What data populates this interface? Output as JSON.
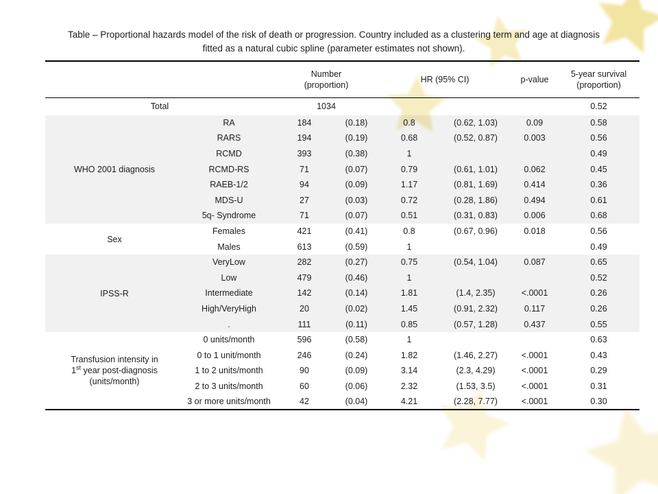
{
  "caption": {
    "line1": "Table – Proportional hazards model of the risk of death or progression. Country included as a clustering term and age at diagnosis",
    "line2": "fitted as a natural cubic spline (parameter estimates not shown)."
  },
  "colors": {
    "text": "#1c1c1c",
    "rule": "#000000",
    "shaded_row": "rgba(0,0,0,0.055)",
    "star_gold": "#f0df90",
    "star_pale": "#f5e9b4",
    "star_faint": "#f9f1d0"
  },
  "table": {
    "header": {
      "number_line1": "Number",
      "number_line2": "(proportion)",
      "hr": "HR (95% CI)",
      "pvalue": "p-value",
      "survival_line1": "5-year survival",
      "survival_line2": "(proportion)"
    },
    "total": {
      "label": "Total",
      "number": "1034",
      "survival": "0.52"
    },
    "groups": [
      {
        "label_lines": [
          "WHO 2001 diagnosis"
        ],
        "shaded": true,
        "rows": [
          {
            "category": "RA",
            "n": "184",
            "prop": "(0.18)",
            "hr": "0.8",
            "ci": "(0.62, 1.03)",
            "p": "0.09",
            "surv": "0.58"
          },
          {
            "category": "RARS",
            "n": "194",
            "prop": "(0.19)",
            "hr": "0.68",
            "ci": "(0.52, 0.87)",
            "p": "0.003",
            "surv": "0.56"
          },
          {
            "category": "RCMD",
            "n": "393",
            "prop": "(0.38)",
            "hr": "1",
            "ci": "",
            "p": "",
            "surv": "0.49"
          },
          {
            "category": "RCMD-RS",
            "n": "71",
            "prop": "(0.07)",
            "hr": "0.79",
            "ci": "(0.61, 1.01)",
            "p": "0.062",
            "surv": "0.45"
          },
          {
            "category": "RAEB-1/2",
            "n": "94",
            "prop": "(0.09)",
            "hr": "1.17",
            "ci": "(0.81, 1.69)",
            "p": "0.414",
            "surv": "0.36"
          },
          {
            "category": "MDS-U",
            "n": "27",
            "prop": "(0.03)",
            "hr": "0.72",
            "ci": "(0.28, 1.86)",
            "p": "0.494",
            "surv": "0.61"
          },
          {
            "category": "5q- Syndrome",
            "n": "71",
            "prop": "(0.07)",
            "hr": "0.51",
            "ci": "(0.31, 0.83)",
            "p": "0.006",
            "surv": "0.68"
          }
        ]
      },
      {
        "label_lines": [
          "Sex"
        ],
        "shaded": false,
        "rows": [
          {
            "category": "Females",
            "n": "421",
            "prop": "(0.41)",
            "hr": "0.8",
            "ci": "(0.67, 0.96)",
            "p": "0.018",
            "surv": "0.56"
          },
          {
            "category": "Males",
            "n": "613",
            "prop": "(0.59)",
            "hr": "1",
            "ci": "",
            "p": "",
            "surv": "0.49"
          }
        ]
      },
      {
        "label_lines": [
          "IPSS-R"
        ],
        "shaded": true,
        "rows": [
          {
            "category": "VeryLow",
            "n": "282",
            "prop": "(0.27)",
            "hr": "0.75",
            "ci": "(0.54, 1.04)",
            "p": "0.087",
            "surv": "0.65"
          },
          {
            "category": "Low",
            "n": "479",
            "prop": "(0.46)",
            "hr": "1",
            "ci": "",
            "p": "",
            "surv": "0.52"
          },
          {
            "category": "Intermediate",
            "n": "142",
            "prop": "(0.14)",
            "hr": "1.81",
            "ci": "(1.4, 2.35)",
            "p": "<.0001",
            "surv": "0.26"
          },
          {
            "category": "High/VeryHigh",
            "n": "20",
            "prop": "(0.02)",
            "hr": "1.45",
            "ci": "(0.91, 2.32)",
            "p": "0.117",
            "surv": "0.26"
          },
          {
            "category": ".",
            "n": "111",
            "prop": "(0.11)",
            "hr": "0.85",
            "ci": "(0.57, 1.28)",
            "p": "0.437",
            "surv": "0.55"
          }
        ]
      },
      {
        "label_lines": [
          "Transfusion intensity in",
          {
            "pre": "1",
            "sup": "st",
            "post": " year post-diagnosis"
          },
          "(units/month)"
        ],
        "shaded": false,
        "rows": [
          {
            "category": "0 units/month",
            "n": "596",
            "prop": "(0.58)",
            "hr": "1",
            "ci": "",
            "p": "",
            "surv": "0.63"
          },
          {
            "category": "0 to 1 unit/month",
            "n": "246",
            "prop": "(0.24)",
            "hr": "1.82",
            "ci": "(1.46, 2.27)",
            "p": "<.0001",
            "surv": "0.43"
          },
          {
            "category": "1 to 2 units/month",
            "n": "90",
            "prop": "(0.09)",
            "hr": "3.14",
            "ci": "(2.3, 4.29)",
            "p": "<.0001",
            "surv": "0.29"
          },
          {
            "category": "2 to 3 units/month",
            "n": "60",
            "prop": "(0.06)",
            "hr": "2.32",
            "ci": "(1.53, 3.5)",
            "p": "<.0001",
            "surv": "0.31"
          },
          {
            "category": "3 or more units/month",
            "n": "42",
            "prop": "(0.04)",
            "hr": "4.21",
            "ci": "(2.28, 7.77)",
            "p": "<.0001",
            "surv": "0.30"
          }
        ]
      }
    ]
  }
}
